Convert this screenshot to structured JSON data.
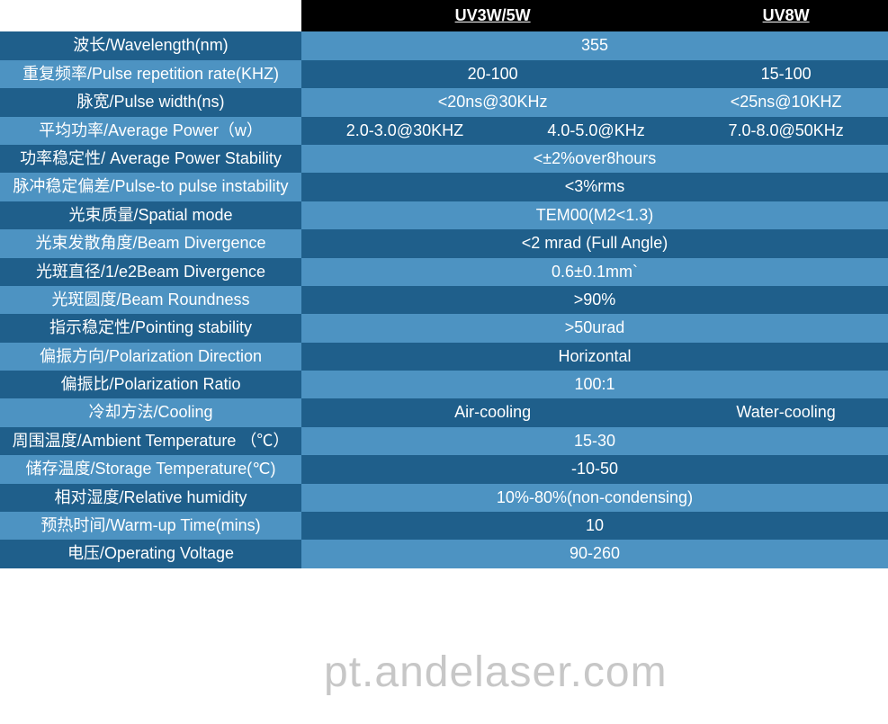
{
  "colors": {
    "header_bg": "#000000",
    "row_dark": "#1f5f8b",
    "row_light": "#4d93c2",
    "text": "#ffffff"
  },
  "headers": {
    "col1": "UV3W/5W",
    "col2": "UV8W"
  },
  "rows": [
    {
      "label": "波长/Wavelength(nm)",
      "type": "span4",
      "val": "355",
      "shade": "dark"
    },
    {
      "label": "重复频率/Pulse repetition rate(KHZ)",
      "type": "split2",
      "v1": "20-100",
      "v2": "15-100",
      "shade": "light"
    },
    {
      "label": "脉宽/Pulse width(ns)",
      "type": "split2",
      "v1": "<20ns@30KHz",
      "v2": "<25ns@10KHZ",
      "shade": "dark"
    },
    {
      "label": "平均功率/Average Power（w）",
      "type": "split3",
      "v1": "2.0-3.0@30KHZ",
      "v2": "4.0-5.0@KHz",
      "v3": "7.0-8.0@50KHz",
      "shade": "light"
    },
    {
      "label": "功率稳定性/ Average Power Stability",
      "type": "span4",
      "val": "<±2%over8hours",
      "shade": "dark"
    },
    {
      "label": "脉冲稳定偏差/Pulse-to pulse instability",
      "type": "span4",
      "val": "<3%rms",
      "shade": "light"
    },
    {
      "label": "光束质量/Spatial mode",
      "type": "span4",
      "val": "TEM00(M2<1.3)",
      "shade": "dark"
    },
    {
      "label": "光束发散角度/Beam Divergence",
      "type": "span4",
      "val": "<2  mrad (Full Angle)",
      "shade": "light"
    },
    {
      "label": "光斑直径/1/e2Beam Divergence",
      "type": "span4",
      "val": "0.6±0.1mm`",
      "shade": "dark"
    },
    {
      "label": "光斑圆度/Beam Roundness",
      "type": "span4",
      "val": ">90%",
      "shade": "light"
    },
    {
      "label": "指示稳定性/Pointing stability",
      "type": "span4",
      "val": ">50urad",
      "shade": "dark"
    },
    {
      "label": "偏振方向/Polarization Direction",
      "type": "span4",
      "val": "Horizontal",
      "shade": "light"
    },
    {
      "label": "偏振比/Polarization Ratio",
      "type": "span4",
      "val": "100:1",
      "shade": "dark"
    },
    {
      "label": "冷却方法/Cooling",
      "type": "split2",
      "v1": "Air-cooling",
      "v2": "Water-cooling",
      "shade": "light"
    },
    {
      "label": "周围温度/Ambient Temperature （℃）",
      "type": "span4",
      "val": "15-30",
      "shade": "dark"
    },
    {
      "label": "储存温度/Storage Temperature(℃)",
      "type": "span4",
      "val": "-10-50",
      "shade": "light"
    },
    {
      "label": "相对湿度/Relative humidity",
      "type": "span4",
      "val": "10%-80%(non-condensing)",
      "shade": "dark"
    },
    {
      "label": "预热时间/Warm-up Time(mins)",
      "type": "span4",
      "val": "10",
      "shade": "light"
    },
    {
      "label": "电压/Operating Voltage",
      "type": "span4",
      "val": "90-260",
      "shade": "dark"
    }
  ],
  "watermark": "pt.andelaser.com"
}
